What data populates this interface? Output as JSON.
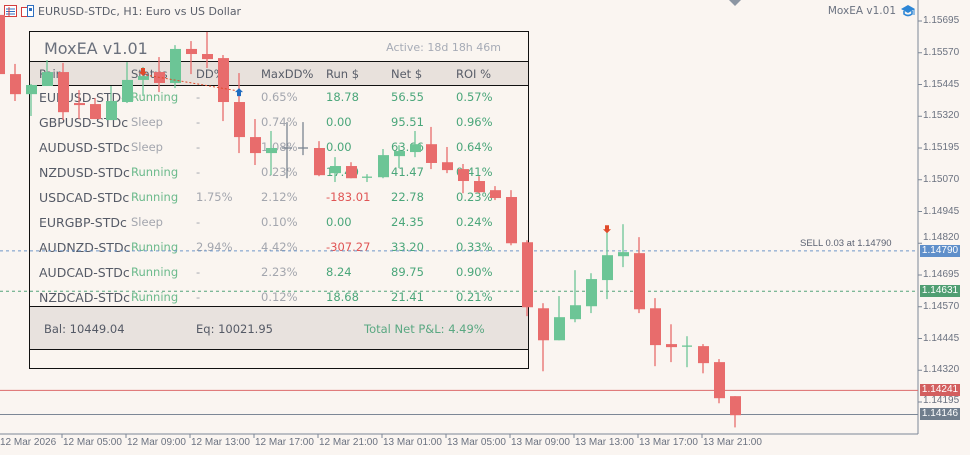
{
  "window": {
    "title": "EURUSD-STDc, H1:  Euro vs US Dollar",
    "ea_label": "MoxEA v1.01",
    "icons": [
      "list-icon",
      "chart-template-icon",
      "graduation-cap-icon"
    ]
  },
  "colors": {
    "bull": "#6cc596",
    "bear": "#e86c6c",
    "doji": "#7b8490",
    "sell_line": "#6f98c9",
    "tp_line": "#55a37a",
    "red_line": "#dc6b6b",
    "gray_line": "#7c8796",
    "panel_header_bg": "#e8e1dc",
    "positive": "#4aa67a",
    "negative": "#e05555",
    "muted": "#a3a6ae"
  },
  "panel": {
    "title": "MoxEA v1.01",
    "active": "Active: 18d 18h 46m",
    "columns": [
      "Pair",
      "Status",
      "DD%",
      "MaxDD%",
      "Run $",
      "Net $",
      "ROI %"
    ],
    "rows": [
      {
        "pair": "EURUSD-STDc",
        "status": "Running",
        "dd": "-",
        "maxdd": "0.65%",
        "run": "18.78",
        "net": "56.55",
        "roi": "0.57%"
      },
      {
        "pair": "GBPUSD-STDc",
        "status": "Sleep",
        "dd": "-",
        "maxdd": "0.74%",
        "run": "0.00",
        "net": "95.51",
        "roi": "0.96%"
      },
      {
        "pair": "AUDUSD-STDc",
        "status": "Sleep",
        "dd": "-",
        "maxdd": "1.08%",
        "run": "0.00",
        "net": "63.66",
        "roi": "0.64%"
      },
      {
        "pair": "NZDUSD-STDc",
        "status": "Running",
        "dd": "-",
        "maxdd": "0.23%",
        "run": "17.49",
        "net": "41.47",
        "roi": "0.41%"
      },
      {
        "pair": "USDCAD-STDc",
        "status": "Running",
        "dd": "1.75%",
        "maxdd": "2.12%",
        "run": "-183.01",
        "net": "22.78",
        "roi": "0.23%"
      },
      {
        "pair": "EURGBP-STDc",
        "status": "Sleep",
        "dd": "-",
        "maxdd": "0.10%",
        "run": "0.00",
        "net": "24.35",
        "roi": "0.24%"
      },
      {
        "pair": "AUDNZD-STDc",
        "status": "Running",
        "dd": "2.94%",
        "maxdd": "4.42%",
        "run": "-307.27",
        "net": "33.20",
        "roi": "0.33%"
      },
      {
        "pair": "AUDCAD-STDc",
        "status": "Running",
        "dd": "-",
        "maxdd": "2.23%",
        "run": "8.24",
        "net": "89.75",
        "roi": "0.90%"
      },
      {
        "pair": "NZDCAD-STDc",
        "status": "Running",
        "dd": "-",
        "maxdd": "0.12%",
        "run": "18.68",
        "net": "21.41",
        "roi": "0.21%"
      }
    ],
    "footer": {
      "balance": "Bal: 10449.04",
      "equity": "Eq: 10021.95",
      "total": "Total Net P&L: 4.49%"
    }
  },
  "chart": {
    "price_range": [
      1.14,
      1.15778
    ],
    "price_ticks": [
      "1.15695",
      "1.15570",
      "1.15445",
      "1.15320",
      "1.15195",
      "1.15070",
      "1.14945",
      "1.14820",
      "1.14695",
      "1.14570",
      "1.14445",
      "1.14320",
      "1.14195"
    ],
    "time_labels": [
      "12 Mar 2026",
      "12 Mar 05:00",
      "12 Mar 09:00",
      "12 Mar 13:00",
      "12 Mar 17:00",
      "12 Mar 21:00",
      "13 Mar 01:00",
      "13 Mar 05:00",
      "13 Mar 09:00",
      "13 Mar 13:00",
      "13 Mar 17:00",
      "13 Mar 21:00"
    ],
    "price_tags": [
      {
        "value": "1.14790",
        "color": "#5f8fca"
      },
      {
        "value": "1.14631",
        "color": "#4f9e72"
      },
      {
        "value": "1.14241",
        "color": "#d35f5f"
      },
      {
        "value": "1.14146",
        "color": "#6f7d8c"
      }
    ],
    "sell_label": "SELL 0.03 at 1.14790",
    "candles": [
      [
        1.15719,
        1.15746,
        1.15478,
        1.15486
      ],
      [
        1.15486,
        1.15526,
        1.1538,
        1.15407
      ],
      [
        1.15407,
        1.15447,
        1.15321,
        1.15443
      ],
      [
        1.15439,
        1.15541,
        1.15439,
        1.15494
      ],
      [
        1.15494,
        1.1553,
        1.15305,
        1.15336
      ],
      [
        1.15372,
        1.15423,
        1.15309,
        1.15364
      ],
      [
        1.15368,
        1.15392,
        1.15309,
        1.15309
      ],
      [
        1.15305,
        1.15439,
        1.15305,
        1.1538
      ],
      [
        1.15376,
        1.15533,
        1.15372,
        1.15463
      ],
      [
        1.15463,
        1.15514,
        1.154,
        1.15478
      ],
      [
        1.15494,
        1.15553,
        1.15415,
        1.15451
      ],
      [
        1.15451,
        1.156,
        1.15431,
        1.15585
      ],
      [
        1.15585,
        1.15616,
        1.15486,
        1.15565
      ],
      [
        1.15565,
        1.15652,
        1.1551,
        1.15545
      ],
      [
        1.15549,
        1.15561,
        1.15301,
        1.15376
      ],
      [
        1.15376,
        1.1549,
        1.15175,
        1.15238
      ],
      [
        1.15238,
        1.15309,
        1.15128,
        1.15175
      ],
      [
        1.15175,
        1.15262,
        1.15088,
        1.15195
      ],
      [
        1.15195,
        1.15297,
        1.15076,
        1.15195
      ],
      [
        1.15195,
        1.15297,
        1.15167,
        1.15195
      ],
      [
        1.15195,
        1.15222,
        1.15084,
        1.15088
      ],
      [
        1.15096,
        1.15159,
        1.15061,
        1.15124
      ],
      [
        1.15124,
        1.15139,
        1.15076,
        1.15076
      ],
      [
        1.1508,
        1.15092,
        1.15061,
        1.1508
      ],
      [
        1.1508,
        1.15191,
        1.15076,
        1.15167
      ],
      [
        1.15163,
        1.15206,
        1.15116,
        1.15183
      ],
      [
        1.15179,
        1.15262,
        1.15159,
        1.1521
      ],
      [
        1.1521,
        1.15278,
        1.15112,
        1.15136
      ],
      [
        1.15139,
        1.15199,
        1.15096,
        1.15108
      ],
      [
        1.15112,
        1.15132,
        1.15017,
        1.15065
      ],
      [
        1.15065,
        1.15084,
        1.15017,
        1.15021
      ],
      [
        1.15029,
        1.15045,
        1.1499,
        1.14998
      ],
      [
        1.15002,
        1.15029,
        1.14812,
        1.1482
      ],
      [
        1.14824,
        1.14832,
        1.14533,
        1.14568
      ],
      [
        1.14564,
        1.14584,
        1.14316,
        1.14438
      ],
      [
        1.14438,
        1.14612,
        1.14438,
        1.14529
      ],
      [
        1.14521,
        1.14714,
        1.14509,
        1.14576
      ],
      [
        1.14572,
        1.14702,
        1.14545,
        1.14679
      ],
      [
        1.14675,
        1.14879,
        1.146,
        1.14773
      ],
      [
        1.14769,
        1.14895,
        1.14726,
        1.14785
      ],
      [
        1.14781,
        1.14844,
        1.14545,
        1.1456
      ],
      [
        1.14564,
        1.14604,
        1.14336,
        1.14419
      ],
      [
        1.14423,
        1.14501,
        1.14352,
        1.14411
      ],
      [
        1.14415,
        1.14454,
        1.14332,
        1.14415
      ],
      [
        1.14415,
        1.14423,
        1.14308,
        1.14348
      ],
      [
        1.14352,
        1.14364,
        1.1419,
        1.1421
      ],
      [
        1.14218,
        1.14218,
        1.14095,
        1.14143
      ]
    ],
    "arrows": [
      {
        "type": "sell",
        "bar": 9,
        "price": 1.15494
      },
      {
        "type": "buy",
        "bar": 15,
        "price": 1.15415
      },
      {
        "type": "sell",
        "bar": 38,
        "price": 1.14875
      }
    ]
  }
}
